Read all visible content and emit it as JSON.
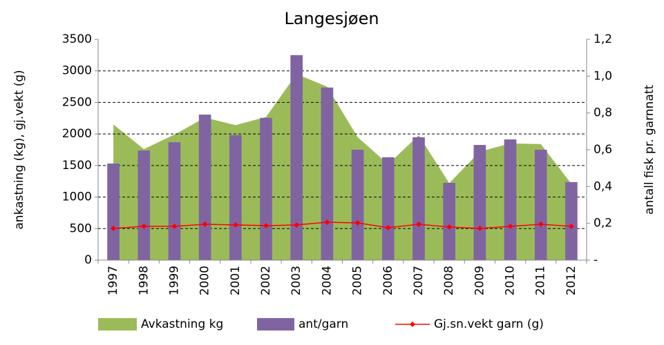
{
  "chart_data": {
    "type": "combo",
    "title": "Langesjøen",
    "y_label": "ankastning (kg), gj.vekt (g)",
    "y2_label": "antall fisk pr. garnnatt",
    "categories": [
      "1997",
      "1998",
      "1999",
      "2000",
      "2001",
      "2002",
      "2003",
      "2004",
      "2005",
      "2006",
      "2007",
      "2008",
      "2009",
      "2010",
      "2011",
      "2012"
    ],
    "series": [
      {
        "name": "Avkastning kg",
        "type": "area",
        "color": "#9bbb59",
        "values": [
          2150,
          1760,
          1990,
          2260,
          2140,
          2270,
          2950,
          2750,
          1950,
          1520,
          1980,
          1220,
          1720,
          1850,
          1840,
          1210
        ]
      },
      {
        "name": "ant/garn",
        "type": "bar",
        "color": "#8064a2",
        "axis": "y2",
        "values": [
          0.525,
          0.596,
          0.641,
          0.791,
          0.679,
          0.773,
          1.114,
          0.938,
          0.6,
          0.559,
          0.668,
          0.42,
          0.626,
          0.656,
          0.6,
          0.424
        ]
      },
      {
        "name": "Gj.sn.vekt garn (g)",
        "type": "line",
        "color": "#ff0000",
        "values": [
          503,
          536,
          536,
          569,
          558,
          547,
          558,
          602,
          590,
          514,
          569,
          525,
          503,
          536,
          569,
          536
        ]
      }
    ],
    "ylim": [
      0,
      3500
    ],
    "yticks": [
      0,
      500,
      1000,
      1500,
      2000,
      2500,
      3000,
      3500
    ],
    "y2lim": [
      0,
      1.2
    ],
    "y2ticks": [
      {
        "value": 0,
        "label": "-"
      },
      {
        "value": 0.2,
        "label": "0,2"
      },
      {
        "value": 0.4,
        "label": "0,4"
      },
      {
        "value": 0.6,
        "label": "0,6"
      },
      {
        "value": 0.8,
        "label": "0,8"
      },
      {
        "value": 1.0,
        "label": "1,0"
      },
      {
        "value": 1.2,
        "label": "1,2"
      }
    ],
    "grid": true,
    "legend": "bottom"
  }
}
